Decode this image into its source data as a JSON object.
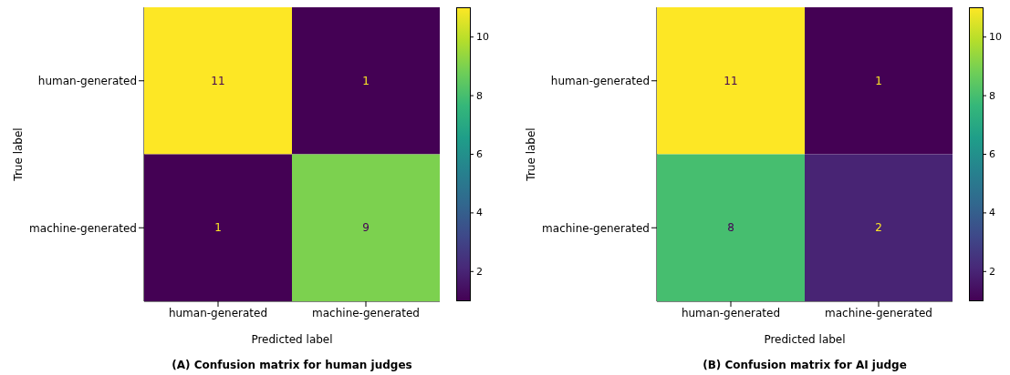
{
  "chart_data": [
    {
      "type": "heatmap",
      "title": "(A) Confusion matrix for human judges",
      "xlabel": "Predicted label",
      "ylabel": "True label",
      "categories": [
        "human-generated",
        "machine-generated"
      ],
      "y_categories": [
        "human-generated",
        "machine-generated"
      ],
      "cells": [
        [
          11,
          1
        ],
        [
          1,
          9
        ]
      ],
      "clim": [
        1,
        11
      ],
      "cticks": [
        2,
        4,
        6,
        8,
        10
      ],
      "data_labels": true
    },
    {
      "type": "heatmap",
      "title": "(B) Confusion matrix for AI judge",
      "xlabel": "Predicted label",
      "ylabel": "True label",
      "categories": [
        "human-generated",
        "machine-generated"
      ],
      "y_categories": [
        "human-generated",
        "machine-generated"
      ],
      "cells": [
        [
          11,
          1
        ],
        [
          8,
          2
        ]
      ],
      "clim": [
        1,
        11
      ],
      "cticks": [
        2,
        4,
        6,
        8,
        10
      ],
      "data_labels": true
    }
  ]
}
